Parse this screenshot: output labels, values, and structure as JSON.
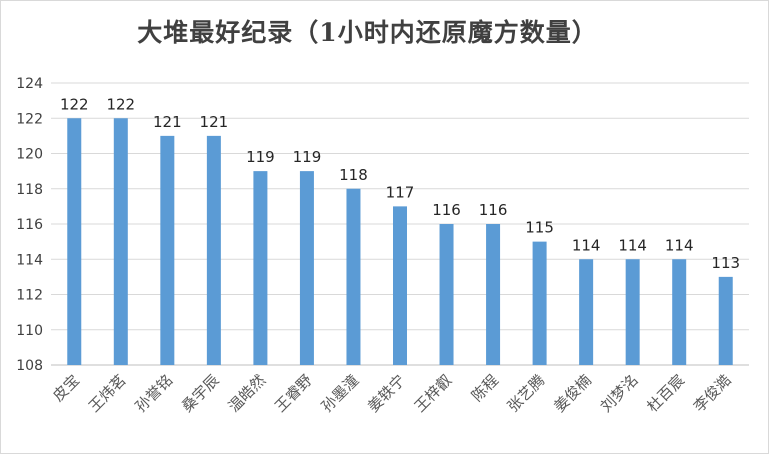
{
  "chart_data": {
    "type": "bar",
    "title": "大堆最好纪录（1小时内还原魔方数量）",
    "xlabel": "",
    "ylabel": "",
    "ylim": [
      108,
      124
    ],
    "yticks": [
      108,
      110,
      112,
      114,
      116,
      118,
      120,
      122,
      124
    ],
    "grid": true,
    "legend": "none",
    "data_labels": true,
    "bar_color": "#5b9bd5",
    "categories": [
      "皮宝",
      "王炜茗",
      "孙誉铭",
      "桑宇辰",
      "温皓然",
      "王睿野",
      "孙墨潼",
      "姜轶宁",
      "王梓叡",
      "陈程",
      "张艺腾",
      "姜俊楠",
      "刘梦洺",
      "杜百宸",
      "李俊澔"
    ],
    "values": [
      122,
      122,
      121,
      121,
      119,
      119,
      118,
      117,
      116,
      116,
      115,
      114,
      114,
      114,
      113
    ]
  }
}
